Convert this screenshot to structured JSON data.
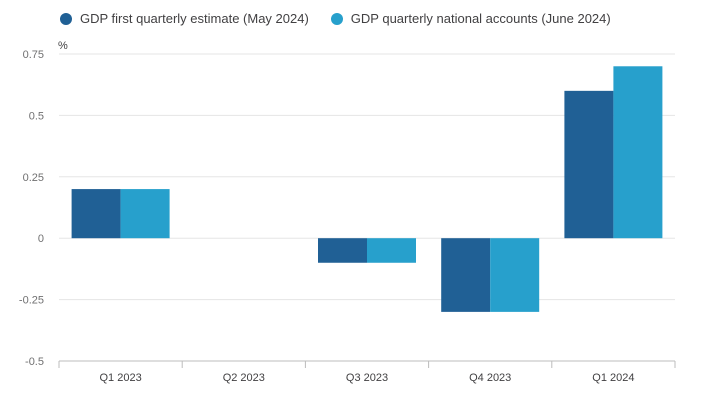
{
  "chart_data": {
    "type": "bar",
    "title": "",
    "xlabel": "",
    "ylabel": "%",
    "ylim": [
      -0.5,
      0.75
    ],
    "yticks": [
      0.75,
      0.5,
      0.25,
      0,
      -0.25,
      -0.5
    ],
    "ytick_labels": [
      "0.75",
      "0.5",
      "0.25",
      "0",
      "-0.25",
      "-0.5"
    ],
    "grid": true,
    "legend_position": "top-left",
    "categories": [
      "Q1 2023",
      "Q2 2023",
      "Q3 2023",
      "Q4 2023",
      "Q1 2024"
    ],
    "series": [
      {
        "name": "GDP first quarterly estimate (May 2024)",
        "color": "#206095",
        "values": [
          0.2,
          0,
          -0.1,
          -0.3,
          0.6
        ]
      },
      {
        "name": "GDP quarterly national accounts (June 2024)",
        "color": "#27a0cc",
        "values": [
          0.2,
          0,
          -0.1,
          -0.3,
          0.7
        ]
      }
    ]
  }
}
